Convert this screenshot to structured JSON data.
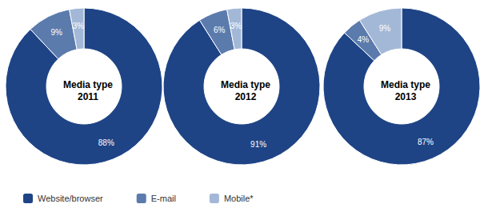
{
  "chart_data": [
    {
      "type": "pie",
      "title": "Media type 2011",
      "categories": [
        "Website/browser",
        "E-mail",
        "Mobile*"
      ],
      "values": [
        88,
        9,
        3
      ],
      "value_labels": [
        "88%",
        "9%",
        "3%"
      ],
      "colors": [
        "#1e4486",
        "#5b7bad",
        "#a3b8d7"
      ],
      "data_labels": true,
      "legend": "bottom-left"
    },
    {
      "type": "pie",
      "title": "Media type 2012",
      "categories": [
        "Website/browser",
        "E-mail",
        "Mobile*"
      ],
      "values": [
        91,
        6,
        3
      ],
      "value_labels": [
        "91%",
        "6%",
        "3%"
      ],
      "colors": [
        "#1e4486",
        "#5b7bad",
        "#a3b8d7"
      ],
      "data_labels": true
    },
    {
      "type": "pie",
      "title": "Media type 2013",
      "categories": [
        "Website/browser",
        "E-mail",
        "Mobile*"
      ],
      "values": [
        87,
        4,
        9
      ],
      "value_labels": [
        "87%",
        "4%",
        "9%"
      ],
      "colors": [
        "#1e4486",
        "#5b7bad",
        "#a3b8d7"
      ],
      "data_labels": true
    }
  ]
}
